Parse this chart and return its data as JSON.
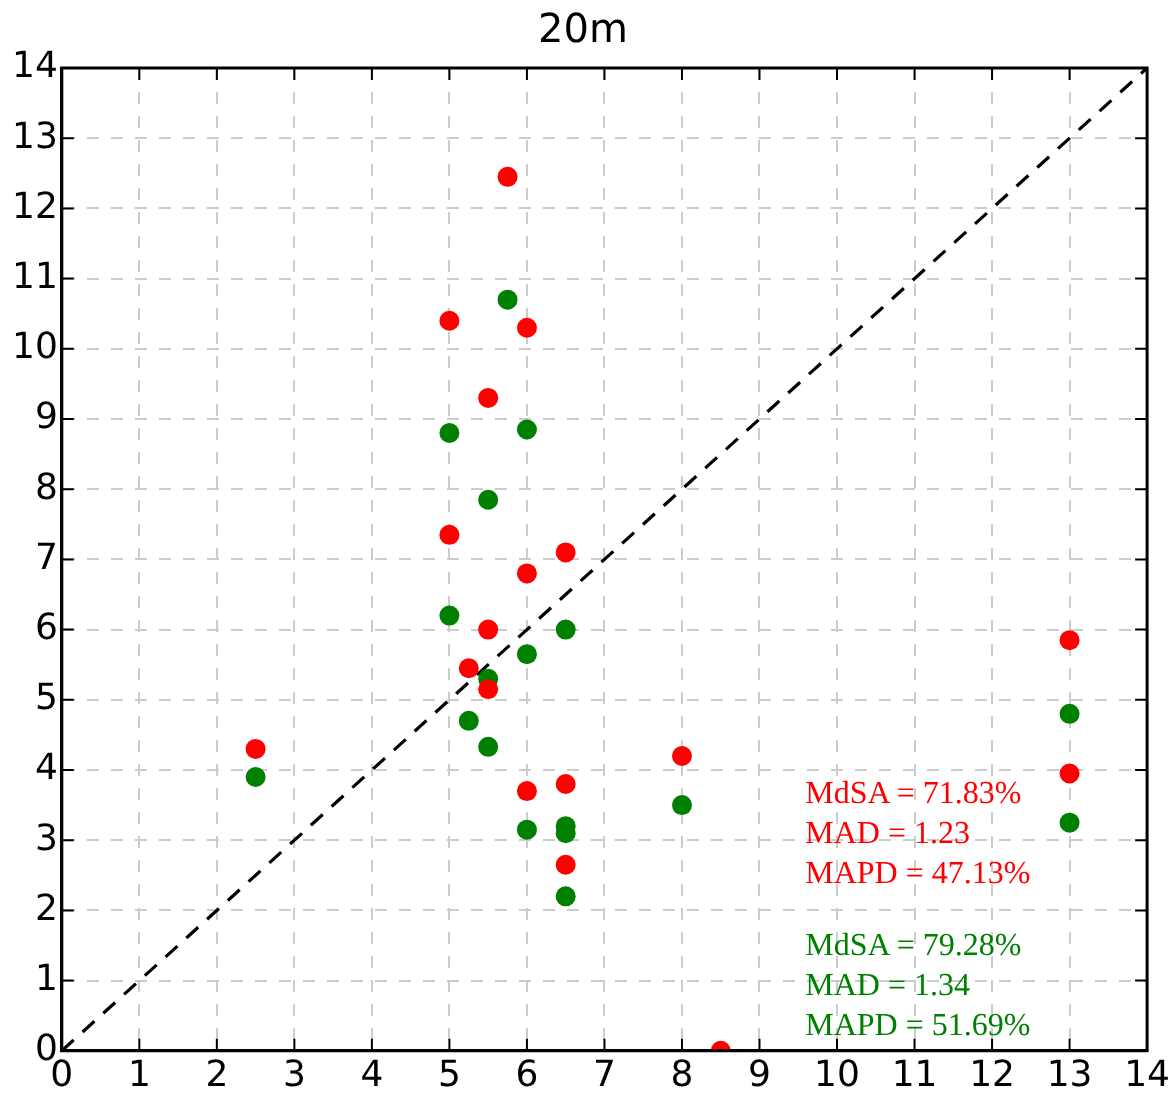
{
  "chart_data": {
    "type": "scatter",
    "title": "20m",
    "series": [
      {
        "color": "#ff0000",
        "x": [
          2.5,
          5,
          5,
          5.25,
          5.5,
          5.5,
          5.5,
          5.75,
          6,
          6,
          6,
          6.5,
          6.5,
          6.5,
          8,
          8.5,
          13,
          13
        ],
        "values": [
          4.3,
          10.4,
          7.35,
          5.45,
          9.3,
          6.0,
          5.15,
          12.45,
          10.3,
          6.8,
          3.7,
          7.1,
          3.8,
          2.65,
          4.2,
          0,
          5.85,
          3.95
        ]
      },
      {
        "color": "#008000",
        "x": [
          2.5,
          5,
          5,
          5.25,
          5.5,
          5.5,
          5.5,
          5.75,
          6,
          6,
          6,
          6.5,
          6.5,
          6.5,
          6.5,
          8,
          13,
          13
        ],
        "values": [
          3.9,
          8.8,
          6.2,
          4.7,
          7.85,
          5.3,
          4.33,
          10.7,
          8.85,
          5.65,
          3.15,
          6.0,
          3.2,
          3.1,
          2.2,
          3.5,
          4.8,
          3.25
        ]
      },
      {
        "type": "line",
        "color": "#000000",
        "line_style": "dashed",
        "marker": "none",
        "x": [
          0,
          14
        ],
        "values": [
          0,
          14
        ]
      }
    ],
    "xlim": [
      0,
      14
    ],
    "xticks": [
      0,
      1,
      2,
      3,
      4,
      5,
      6,
      7,
      8,
      9,
      10,
      11,
      12,
      13,
      14
    ],
    "ylim": [
      0,
      14
    ],
    "yticks": [
      0,
      1,
      2,
      3,
      4,
      5,
      6,
      7,
      8,
      9,
      10,
      11,
      12,
      13,
      14
    ],
    "grid": true,
    "legend": false,
    "marker": "circle",
    "annotations": [
      "MdSA = 71.83%",
      "MAD = 1.23",
      "MAPD = 47.13%",
      "MdSA = 79.28%",
      "MAD = 1.34",
      "MAPD = 51.69%"
    ]
  }
}
